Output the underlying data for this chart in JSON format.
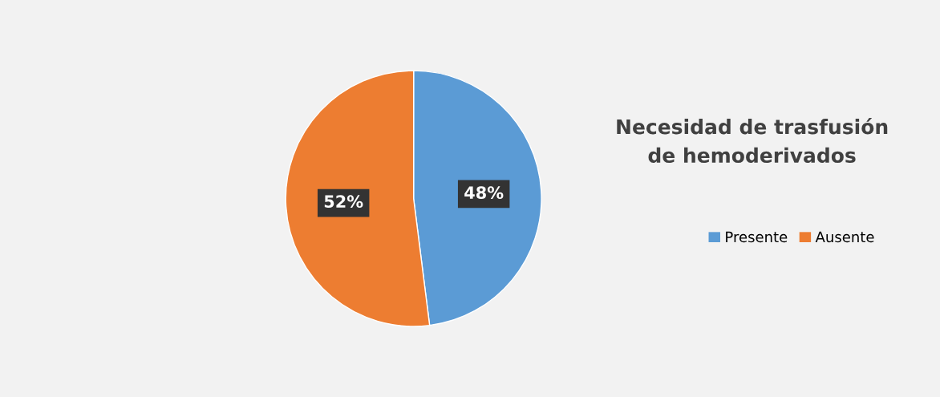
{
  "chart_data": {
    "type": "pie",
    "title": "Necesidad de trasfusión\nde hemoderivados",
    "categories": [
      "Presente",
      "Ausente"
    ],
    "values": [
      48,
      52
    ],
    "colors": [
      "#5b9bd5",
      "#ed7d31"
    ],
    "value_labels": [
      "48%",
      "52%"
    ],
    "legend": "right"
  }
}
